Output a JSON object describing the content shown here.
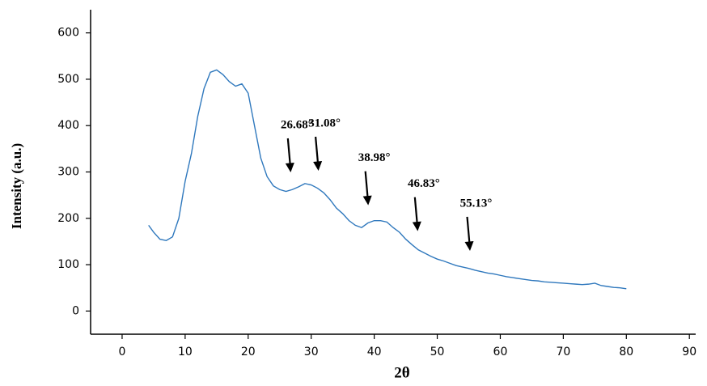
{
  "chart_data": {
    "type": "line",
    "x_label": "2θ",
    "y_label": "Intensity (a.u.)",
    "color": "#2f78bd",
    "x": [
      4.2,
      5,
      6,
      7,
      8,
      9,
      10,
      11,
      12,
      13,
      14,
      15,
      16,
      17,
      18,
      19,
      20,
      21,
      22,
      23,
      24,
      25,
      26,
      27,
      28,
      29,
      30,
      31,
      32,
      33,
      34,
      35,
      36,
      37,
      38,
      39,
      40,
      41,
      42,
      43,
      44,
      45,
      46,
      47,
      48,
      49,
      50,
      51,
      52,
      53,
      54,
      55,
      56,
      57,
      58,
      59,
      60,
      61,
      62,
      63,
      64,
      65,
      66,
      67,
      68,
      69,
      70,
      71,
      72,
      73,
      74,
      75,
      76,
      77,
      78,
      79,
      80
    ],
    "values": [
      185,
      170,
      155,
      152,
      160,
      200,
      280,
      340,
      420,
      480,
      515,
      520,
      510,
      495,
      485,
      490,
      470,
      400,
      330,
      290,
      270,
      262,
      258,
      262,
      268,
      275,
      272,
      265,
      255,
      240,
      222,
      210,
      195,
      185,
      180,
      190,
      195,
      195,
      192,
      180,
      170,
      155,
      143,
      132,
      125,
      118,
      112,
      108,
      103,
      98,
      95,
      92,
      88,
      85,
      82,
      80,
      77,
      74,
      72,
      70,
      68,
      66,
      65,
      63,
      62,
      61,
      60,
      59,
      58,
      57,
      58,
      60,
      55,
      53,
      51,
      50,
      48
    ],
    "xlim": [
      -5,
      91
    ],
    "xticks": [
      0,
      10,
      20,
      30,
      40,
      50,
      60,
      70,
      80,
      90
    ],
    "ylim": [
      -50,
      650
    ],
    "yticks": [
      0,
      100,
      200,
      300,
      400,
      500,
      600
    ],
    "annotations": [
      {
        "x": 26.68,
        "label": "26.68°"
      },
      {
        "x": 31.08,
        "label": "31.08°"
      },
      {
        "x": 38.98,
        "label": "38.98°"
      },
      {
        "x": 46.83,
        "label": "46.83°"
      },
      {
        "x": 55.13,
        "label": "55.13°"
      }
    ]
  }
}
